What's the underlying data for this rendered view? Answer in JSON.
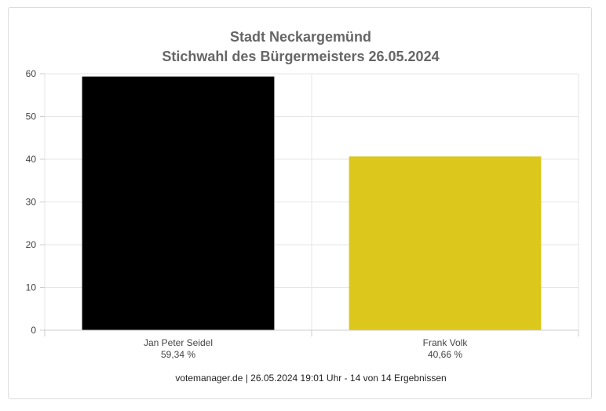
{
  "chart_data": {
    "type": "bar",
    "title": [
      "Stadt Neckargemünd",
      "Stichwahl des Bürgermeisters 26.05.2024"
    ],
    "categories": [
      "Jan Peter Seidel",
      "Frank Volk"
    ],
    "values": [
      59.34,
      40.66
    ],
    "value_labels": [
      "59,34 %",
      "40,66 %"
    ],
    "colors": [
      "#000000",
      "#dcc81c"
    ],
    "ylim": [
      0,
      60
    ],
    "yticks": [
      0,
      10,
      20,
      30,
      40,
      50,
      60
    ],
    "grid": true,
    "legend": "none"
  },
  "footer": "votemanager.de | 26.05.2024 19:01 Uhr - 14 von 14 Ergebnissen"
}
